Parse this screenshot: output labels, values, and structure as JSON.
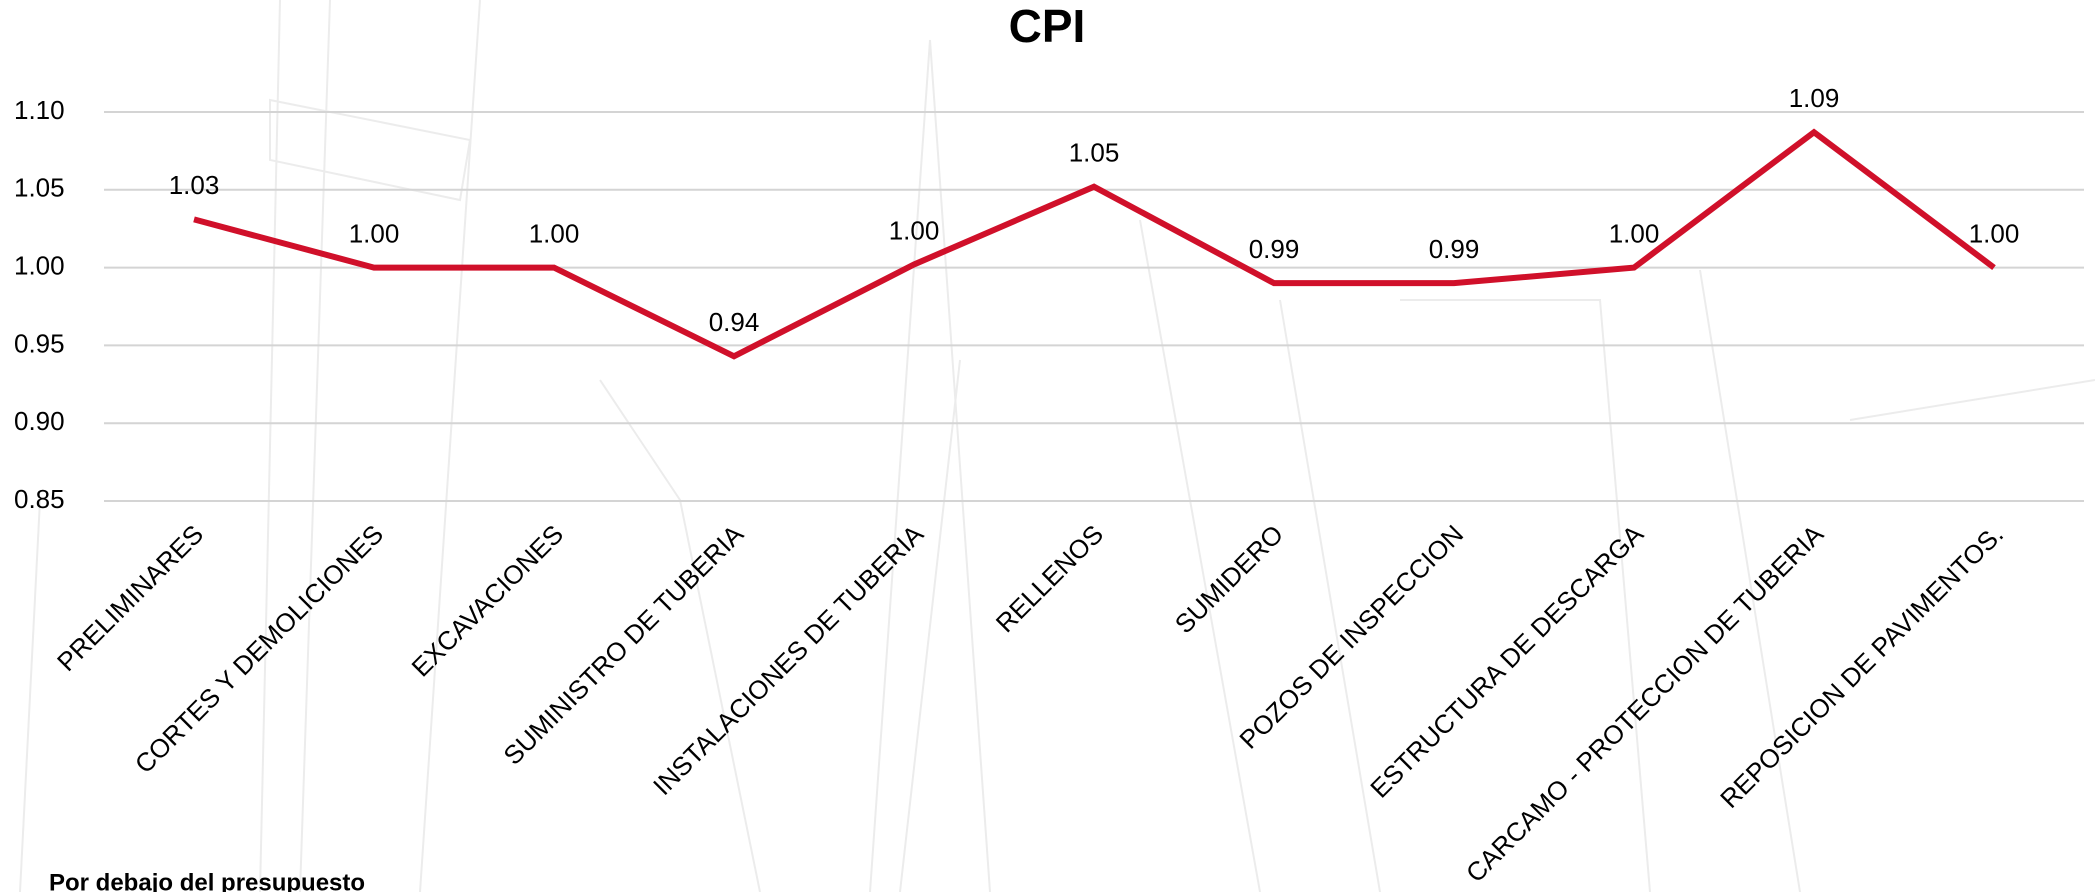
{
  "chart_data": {
    "type": "line",
    "title": "CPI",
    "categories": [
      "PRELIMINARES",
      "CORTES Y DEMOLICIONES",
      "EXCAVACIONES",
      "SUMINISTRO DE TUBERIA",
      "INSTALACIONES DE TUBERIA",
      "RELLENOS",
      "SUMIDERO",
      "POZOS DE INSPECCION",
      "ESTRUCTURA DE DESCARGA",
      "CARCAMO - PROTECCION DE TUBERIA",
      "REPOSICION DE PAVIMENTOS."
    ],
    "series": [
      {
        "name": "CPI",
        "color": "#d0102a",
        "values": [
          1.031,
          1.0,
          1.0,
          0.943,
          1.002,
          1.052,
          0.99,
          0.99,
          1.0,
          1.087,
          1.0
        ],
        "value_labels": [
          "1.03",
          "1.00",
          "1.00",
          "0.94",
          "1.00",
          "1.05",
          "0.99",
          "0.99",
          "1.00",
          "1.09",
          "1.00"
        ]
      }
    ],
    "ylim": [
      0.85,
      1.1
    ],
    "yticks": [
      0.85,
      {
        "value": 0.9,
        "label": "0.90"
      },
      0.95,
      {
        "value": 1.0,
        "label": "1.00"
      },
      1.05,
      {
        "value": 1.1,
        "label": "1.10"
      }
    ],
    "grid": true,
    "annotation": "Por debajo del presupuesto"
  }
}
